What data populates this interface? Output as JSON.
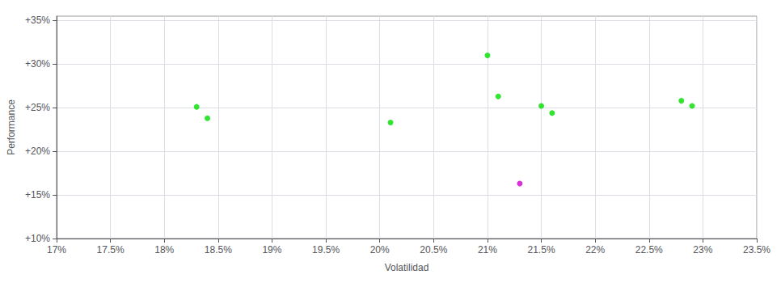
{
  "chart_data": {
    "type": "scatter",
    "xlabel": "Volatilidad",
    "ylabel": "Performance",
    "xlim": [
      0.17,
      0.235
    ],
    "ylim": [
      0.1,
      0.355
    ],
    "xticks": [
      {
        "value": 0.17,
        "label": "17%"
      },
      {
        "value": 0.175,
        "label": "17.5%"
      },
      {
        "value": 0.18,
        "label": "18%"
      },
      {
        "value": 0.185,
        "label": "18.5%"
      },
      {
        "value": 0.19,
        "label": "19%"
      },
      {
        "value": 0.195,
        "label": "19.5%"
      },
      {
        "value": 0.2,
        "label": "20%"
      },
      {
        "value": 0.205,
        "label": "20.5%"
      },
      {
        "value": 0.21,
        "label": "21%"
      },
      {
        "value": 0.215,
        "label": "21.5%"
      },
      {
        "value": 0.22,
        "label": "22%"
      },
      {
        "value": 0.225,
        "label": "22.5%"
      },
      {
        "value": 0.23,
        "label": "23%"
      },
      {
        "value": 0.235,
        "label": "23.5%"
      }
    ],
    "yticks": [
      {
        "value": 0.1,
        "label": "+10%"
      },
      {
        "value": 0.15,
        "label": "+15%"
      },
      {
        "value": 0.2,
        "label": "+20%"
      },
      {
        "value": 0.25,
        "label": "+25%"
      },
      {
        "value": 0.3,
        "label": "+30%"
      },
      {
        "value": 0.35,
        "label": "+35%"
      }
    ],
    "grid": true,
    "series": [
      {
        "color": "#00dd00",
        "x": [
          0.183,
          0.184,
          0.201,
          0.21,
          0.211,
          0.215,
          0.216,
          0.228,
          0.229
        ],
        "values": [
          0.251,
          0.238,
          0.233,
          0.31,
          0.263,
          0.252,
          0.244,
          0.258,
          0.252
        ]
      },
      {
        "color": "#cc00cc",
        "x": [
          0.213
        ],
        "values": [
          0.163
        ]
      }
    ]
  }
}
